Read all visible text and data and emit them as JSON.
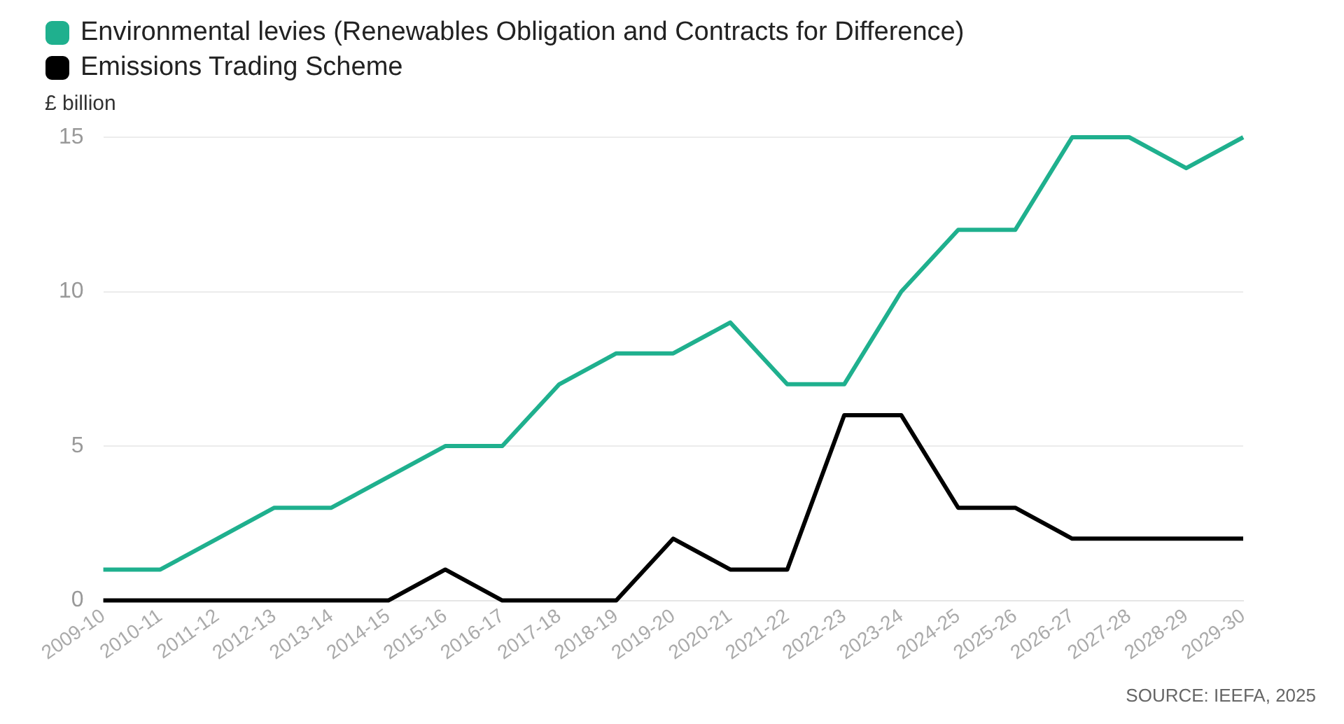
{
  "chart_data": {
    "type": "line",
    "ylabel": "£ billion",
    "categories": [
      "2009-10",
      "2010-11",
      "2011-12",
      "2012-13",
      "2013-14",
      "2014-15",
      "2015-16",
      "2016-17",
      "2017-18",
      "2018-19",
      "2019-20",
      "2020-21",
      "2021-22",
      "2022-23",
      "2023-24",
      "2024-25",
      "2025-26",
      "2026-27",
      "2027-28",
      "2028-29",
      "2029-30"
    ],
    "series": [
      {
        "name": "Environmental levies (Renewables Obligation and Contracts for Difference)",
        "color": "#1fb08e",
        "values": [
          1,
          1,
          2,
          3,
          3,
          4,
          5,
          5,
          7,
          8,
          8,
          9,
          7,
          7,
          10,
          12,
          12,
          15,
          15,
          14,
          15
        ]
      },
      {
        "name": "Emissions Trading Scheme",
        "color": "#000000",
        "values": [
          0,
          0,
          0,
          0,
          0,
          0,
          1,
          0,
          0,
          0,
          2,
          1,
          1,
          6,
          6,
          3,
          3,
          2,
          2,
          2,
          2
        ]
      }
    ],
    "ylim": [
      0,
      15
    ],
    "yticks": [
      0,
      5,
      10,
      15
    ],
    "grid": "y",
    "legend": "top left",
    "marker": "none",
    "line_style": "solid",
    "annotations": [
      "SOURCE: IEEFA, 2025"
    ]
  }
}
